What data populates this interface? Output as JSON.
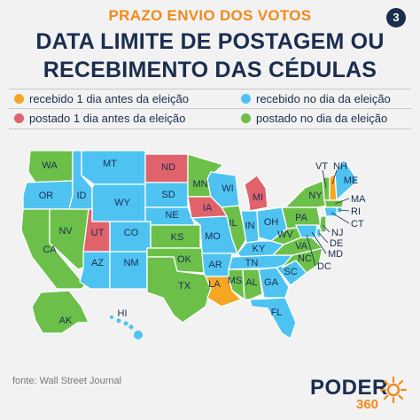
{
  "header": {
    "kicker": "PRAZO ENVIO DOS VOTOS",
    "page_number": "3",
    "title_line1": "DATA LIMITE DE POSTAGEM OU",
    "title_line2": "RECEBIMENTO DAS CÉDULAS"
  },
  "legend": [
    {
      "label": "recebido 1 dia antes da eleição",
      "color": "#f5a623"
    },
    {
      "label": "recebido no dia da eleição",
      "color": "#4ec3f2"
    },
    {
      "label": "postado 1 dia antes da eleição",
      "color": "#e0636b"
    },
    {
      "label": "postado no dia da eleição",
      "color": "#6cc04a"
    }
  ],
  "states": {
    "WA": "WA",
    "OR": "OR",
    "CA": "CA",
    "NV": "NV",
    "ID": "ID",
    "MT": "MT",
    "WY": "WY",
    "UT": "UT",
    "CO": "CO",
    "AZ": "AZ",
    "NM": "NM",
    "ND": "ND",
    "SD": "SD",
    "NE": "NE",
    "KS": "KS",
    "OK": "OK",
    "TX": "TX",
    "MN": "MN",
    "IA": "IA",
    "MO": "MO",
    "AR": "AR",
    "LA": "LA",
    "WI": "WI",
    "IL": "IL",
    "MI": "MI",
    "IN": "IN",
    "OH": "OH",
    "KY": "KY",
    "TN": "TN",
    "MS": "MS",
    "AL": "AL",
    "GA": "GA",
    "FL": "FL",
    "SC": "SC",
    "NC": "NC",
    "VA": "VA",
    "WV": "WV",
    "PA": "PA",
    "NY": "NY",
    "VT": "VT",
    "NH": "NH",
    "ME": "ME",
    "MA": "MA",
    "RI": "RI",
    "CT": "CT",
    "NJ": "NJ",
    "DE": "DE",
    "MD": "MD",
    "DC": "DC",
    "AK": "AK",
    "HI": "HI"
  },
  "footer": {
    "source": "fonte: Wall Street Journal",
    "logo_word": "PODER",
    "logo_number": "360"
  }
}
